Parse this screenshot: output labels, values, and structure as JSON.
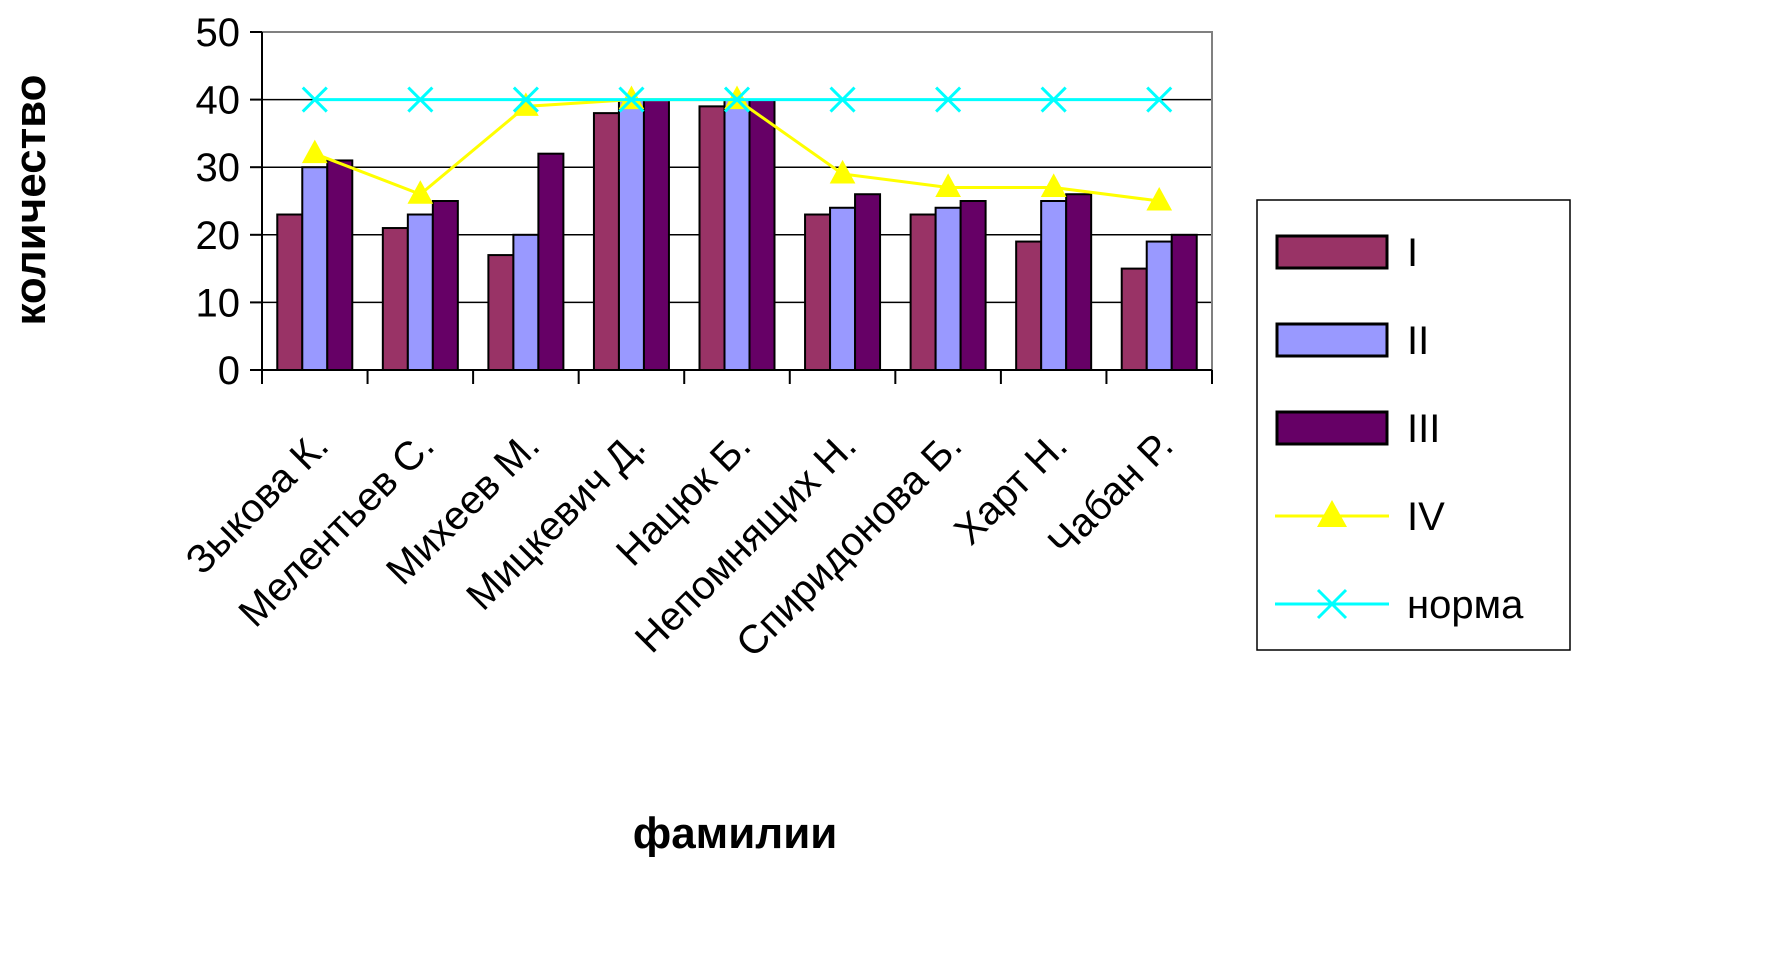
{
  "chart_data": {
    "type": "bar",
    "categories": [
      "Зыкова К.",
      "Мелентьев С.",
      "Михеев М.",
      "Мицкевич Д.",
      "Нацюк Б.",
      "Непомнящих Н.",
      "Спиридонова Б.",
      "Харт Н.",
      "Чабан Р."
    ],
    "series": [
      {
        "name": "I",
        "kind": "bar",
        "color": "#993366",
        "values": [
          23,
          21,
          17,
          38,
          39,
          23,
          23,
          19,
          15
        ]
      },
      {
        "name": "II",
        "kind": "bar",
        "color": "#9999ff",
        "values": [
          30,
          23,
          20,
          40,
          40,
          24,
          24,
          25,
          19
        ]
      },
      {
        "name": "III",
        "kind": "bar",
        "color": "#660066",
        "values": [
          31,
          25,
          32,
          40,
          40,
          26,
          25,
          26,
          20
        ]
      },
      {
        "name": "IV",
        "kind": "line",
        "color": "#ffff00",
        "marker": "triangle",
        "values": [
          32,
          26,
          39,
          40,
          40,
          29,
          27,
          27,
          25
        ]
      },
      {
        "name": "норма",
        "kind": "line",
        "color": "#00ffff",
        "marker": "x",
        "values": [
          40,
          40,
          40,
          40,
          40,
          40,
          40,
          40,
          40
        ]
      }
    ],
    "ylim": [
      0,
      50
    ],
    "yticks": [
      "0",
      "10",
      "20",
      "30",
      "40",
      "50"
    ],
    "xlabel": "фамилии",
    "ylabel": "количество",
    "grid": true,
    "legend": "right"
  }
}
